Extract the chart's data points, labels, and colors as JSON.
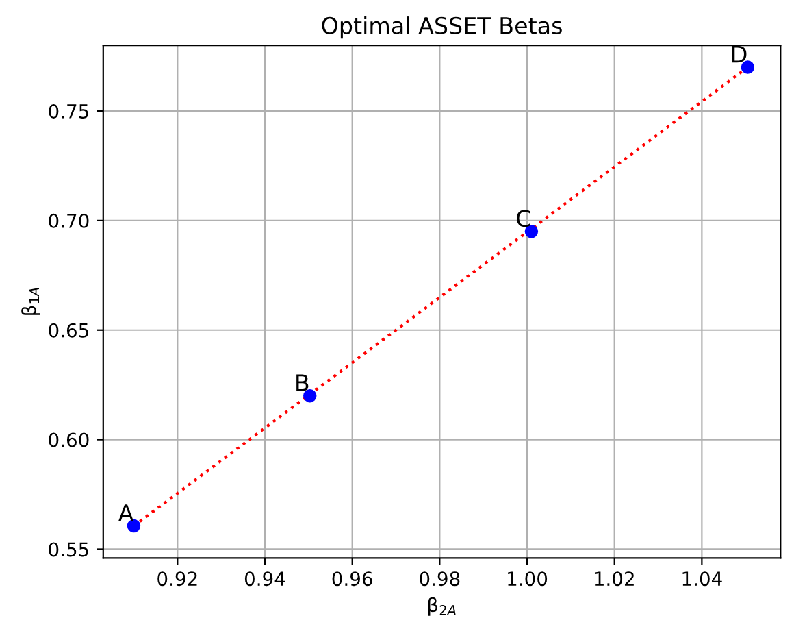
{
  "chart_data": {
    "type": "scatter",
    "title": "Optimal ASSET Betas",
    "xlabel": "β$_{2A}$",
    "ylabel": "β$_{1A}$",
    "x": [
      0.91,
      0.9503,
      1.001,
      1.0505
    ],
    "series": [
      {
        "color": "#0000ff",
        "values": [
          0.5606,
          0.62,
          0.695,
          0.77
        ],
        "marker": "circle"
      },
      {
        "type": "line",
        "color": "#ff0000",
        "x": [
          0.91,
          1.0505
        ],
        "values": [
          0.5606,
          0.77
        ],
        "line_style": "dotted",
        "marker": "none"
      }
    ],
    "annotations": [
      {
        "text": "A",
        "x": 0.91,
        "y": 0.5606
      },
      {
        "text": "B",
        "x": 0.9503,
        "y": 0.62
      },
      {
        "text": "C",
        "x": 1.001,
        "y": 0.695
      },
      {
        "text": "D",
        "x": 1.0505,
        "y": 0.77
      }
    ],
    "xlim": [
      0.903,
      1.058
    ],
    "ylim": [
      0.546,
      0.78
    ],
    "xticks": [
      0.92,
      0.94,
      0.96,
      0.98,
      {
        "value": 1,
        "label": "1.00"
      },
      1.02,
      1.04
    ],
    "yticks": [
      0.55,
      {
        "value": 0.6,
        "label": "0.60"
      },
      0.65,
      {
        "value": 0.7,
        "label": "0.70"
      },
      0.75
    ],
    "grid": true,
    "legend": false
  }
}
